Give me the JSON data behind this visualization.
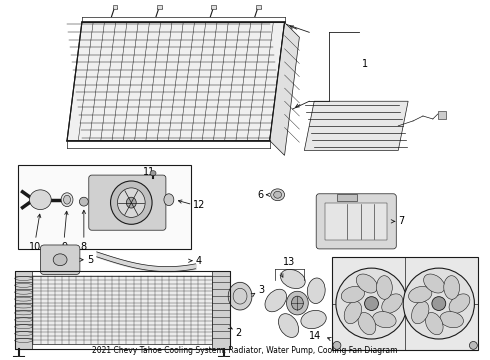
{
  "title": "2021 Chevy Tahoe Cooling System, Radiator, Water Pump, Cooling Fan Diagram",
  "bg": "#ffffff",
  "lc": "#1a1a1a",
  "tc": "#000000",
  "fig_w": 4.9,
  "fig_h": 3.6,
  "dpi": 100,
  "fs": 7.0
}
